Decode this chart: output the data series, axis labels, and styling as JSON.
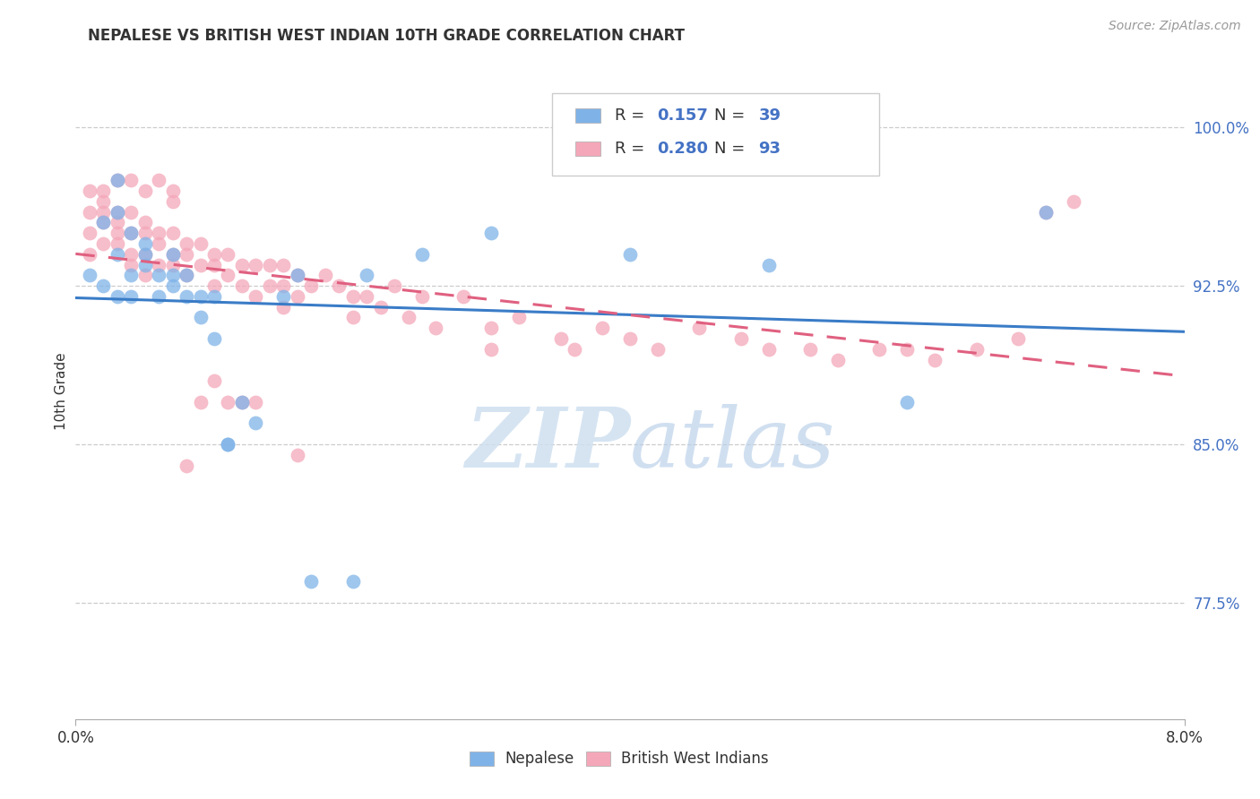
{
  "title": "NEPALESE VS BRITISH WEST INDIAN 10TH GRADE CORRELATION CHART",
  "source": "Source: ZipAtlas.com",
  "ylabel": "10th Grade",
  "yticks": [
    77.5,
    85.0,
    92.5,
    100.0
  ],
  "ytick_labels": [
    "77.5%",
    "85.0%",
    "92.5%",
    "100.0%"
  ],
  "xlim": [
    0.0,
    0.08
  ],
  "ylim": [
    72.0,
    103.0
  ],
  "r_nepalese": 0.157,
  "n_nepalese": 39,
  "r_bwi": 0.28,
  "n_bwi": 93,
  "color_nepalese": "#7fb3e8",
  "color_bwi": "#f4a7b9",
  "line_color_nepalese": "#3a7cc7",
  "line_color_bwi": "#e06080",
  "background_color": "#ffffff",
  "watermark_zip_color": "#cfe0f0",
  "watermark_atlas_color": "#b8cfe8",
  "nepalese_x": [
    0.001,
    0.002,
    0.002,
    0.003,
    0.003,
    0.003,
    0.003,
    0.004,
    0.004,
    0.004,
    0.005,
    0.005,
    0.005,
    0.006,
    0.006,
    0.007,
    0.007,
    0.007,
    0.008,
    0.008,
    0.009,
    0.009,
    0.01,
    0.01,
    0.011,
    0.011,
    0.012,
    0.013,
    0.015,
    0.016,
    0.017,
    0.02,
    0.021,
    0.025,
    0.03,
    0.04,
    0.05,
    0.06,
    0.07
  ],
  "nepalese_y": [
    93.0,
    92.5,
    95.5,
    94.0,
    92.0,
    96.0,
    97.5,
    93.0,
    92.0,
    95.0,
    94.0,
    93.5,
    94.5,
    92.0,
    93.0,
    93.0,
    92.5,
    94.0,
    92.0,
    93.0,
    91.0,
    92.0,
    92.0,
    90.0,
    85.0,
    85.0,
    87.0,
    86.0,
    92.0,
    93.0,
    78.5,
    78.5,
    93.0,
    94.0,
    95.0,
    94.0,
    93.5,
    87.0,
    96.0
  ],
  "bwi_x": [
    0.001,
    0.001,
    0.001,
    0.001,
    0.002,
    0.002,
    0.002,
    0.002,
    0.002,
    0.003,
    0.003,
    0.003,
    0.003,
    0.004,
    0.004,
    0.004,
    0.004,
    0.005,
    0.005,
    0.005,
    0.005,
    0.006,
    0.006,
    0.006,
    0.007,
    0.007,
    0.007,
    0.008,
    0.008,
    0.008,
    0.009,
    0.009,
    0.01,
    0.01,
    0.01,
    0.011,
    0.011,
    0.012,
    0.012,
    0.013,
    0.013,
    0.014,
    0.014,
    0.015,
    0.015,
    0.015,
    0.016,
    0.016,
    0.017,
    0.018,
    0.019,
    0.02,
    0.02,
    0.021,
    0.022,
    0.023,
    0.024,
    0.025,
    0.026,
    0.028,
    0.03,
    0.03,
    0.032,
    0.035,
    0.036,
    0.038,
    0.04,
    0.042,
    0.045,
    0.048,
    0.05,
    0.053,
    0.055,
    0.058,
    0.06,
    0.062,
    0.065,
    0.068,
    0.07,
    0.072,
    0.003,
    0.004,
    0.005,
    0.006,
    0.007,
    0.007,
    0.008,
    0.009,
    0.01,
    0.011,
    0.012,
    0.013,
    0.016
  ],
  "bwi_y": [
    96.0,
    97.0,
    95.0,
    94.0,
    96.0,
    96.5,
    97.0,
    95.5,
    94.5,
    96.0,
    95.5,
    95.0,
    94.5,
    96.0,
    95.0,
    94.0,
    93.5,
    95.5,
    95.0,
    94.0,
    93.0,
    95.0,
    94.5,
    93.5,
    95.0,
    94.0,
    93.5,
    94.5,
    94.0,
    93.0,
    94.5,
    93.5,
    94.0,
    93.5,
    92.5,
    94.0,
    93.0,
    93.5,
    92.5,
    93.5,
    92.0,
    93.5,
    92.5,
    93.5,
    92.5,
    91.5,
    93.0,
    92.0,
    92.5,
    93.0,
    92.5,
    92.0,
    91.0,
    92.0,
    91.5,
    92.5,
    91.0,
    92.0,
    90.5,
    92.0,
    90.5,
    89.5,
    91.0,
    90.0,
    89.5,
    90.5,
    90.0,
    89.5,
    90.5,
    90.0,
    89.5,
    89.5,
    89.0,
    89.5,
    89.5,
    89.0,
    89.5,
    90.0,
    96.0,
    96.5,
    97.5,
    97.5,
    97.0,
    97.5,
    97.0,
    96.5,
    84.0,
    87.0,
    88.0,
    87.0,
    87.0,
    87.0,
    84.5
  ]
}
